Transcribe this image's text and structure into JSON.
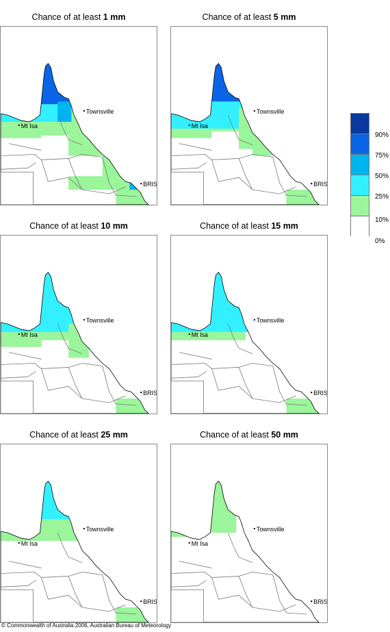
{
  "panels": [
    {
      "prefix": "Chance of at least ",
      "amount": "1 mm",
      "level": 5
    },
    {
      "prefix": "Chance of at least ",
      "amount": "5 mm",
      "level": 4
    },
    {
      "prefix": "Chance of at least ",
      "amount": "10 mm",
      "level": 3
    },
    {
      "prefix": "Chance of at least ",
      "amount": "15 mm",
      "level": 2
    },
    {
      "prefix": "Chance of at least ",
      "amount": "25 mm",
      "level": 1
    },
    {
      "prefix": "Chance of at least ",
      "amount": "50 mm",
      "level": 0
    }
  ],
  "places": {
    "townsville": "Townsville",
    "mtisa": "Mt Isa",
    "bris": "BRIS"
  },
  "legend": {
    "labels": [
      "90%",
      "75%",
      "50%",
      "25%",
      "10%",
      "0%"
    ],
    "colors": [
      "#0a3aa0",
      "#0a64e6",
      "#00b4f0",
      "#32f0ff",
      "#9bf59b",
      "#ffffff"
    ]
  },
  "copyright": "© Commonwealth of Australia 2006, Australian Bureau of Meteorology"
}
